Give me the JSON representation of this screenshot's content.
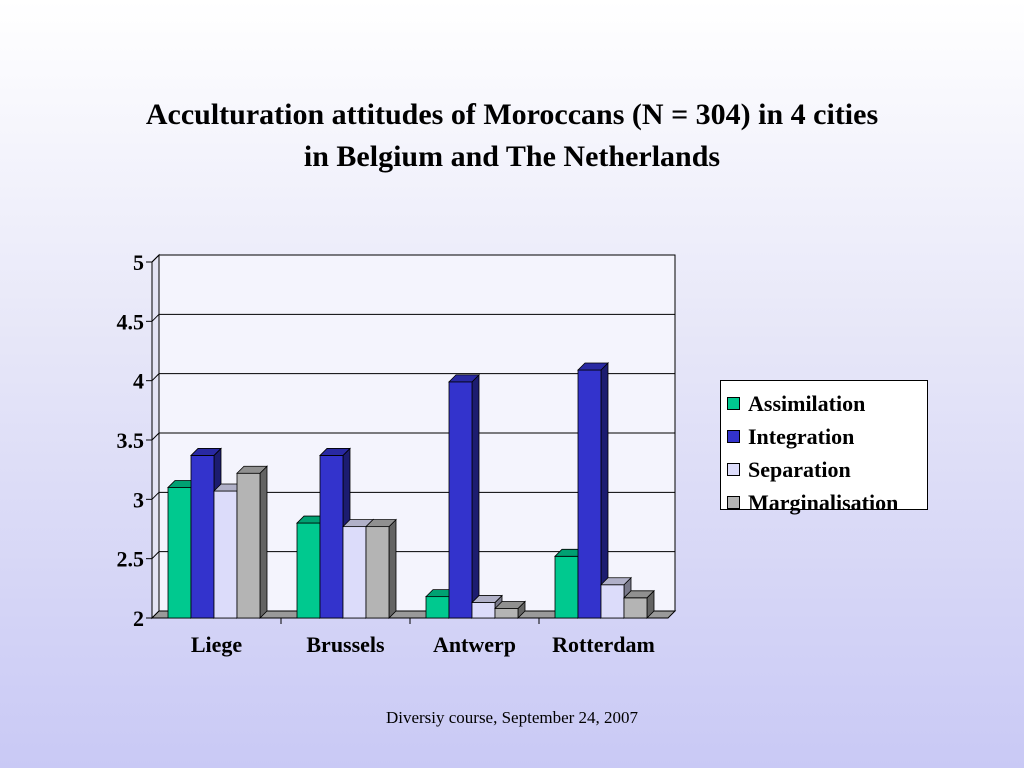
{
  "title": {
    "line1": "Acculturation attitudes of Moroccans (N = 304) in 4 cities",
    "line2": "in Belgium and The Netherlands"
  },
  "footer": "Diversiy course, September 24, 2007",
  "colors": {
    "Assimilation": "#00c98f",
    "Integration": "#3333cc",
    "Separation": "#dcdcfa",
    "Marginalisation": "#b4b4b4"
  },
  "legend": [
    "Assimilation",
    "Integration",
    "Separation",
    "Marginalisation"
  ],
  "chart_data": {
    "type": "bar",
    "categories": [
      "Liege",
      "Brussels",
      "Antwerp",
      "Rotterdam"
    ],
    "series": [
      {
        "name": "Assimilation",
        "values": [
          3.1,
          2.8,
          2.18,
          2.52
        ]
      },
      {
        "name": "Integration",
        "values": [
          3.37,
          3.37,
          3.99,
          4.09
        ]
      },
      {
        "name": "Separation",
        "values": [
          3.07,
          2.77,
          2.13,
          2.28
        ]
      },
      {
        "name": "Marginalisation",
        "values": [
          3.22,
          2.77,
          2.08,
          2.17
        ]
      }
    ],
    "yticks": [
      "2",
      "2.5",
      "3",
      "3.5",
      "4",
      "4.5",
      "5"
    ],
    "ylim": [
      2,
      5
    ],
    "grid": true,
    "legend_position": "right",
    "style": "3d-column"
  }
}
